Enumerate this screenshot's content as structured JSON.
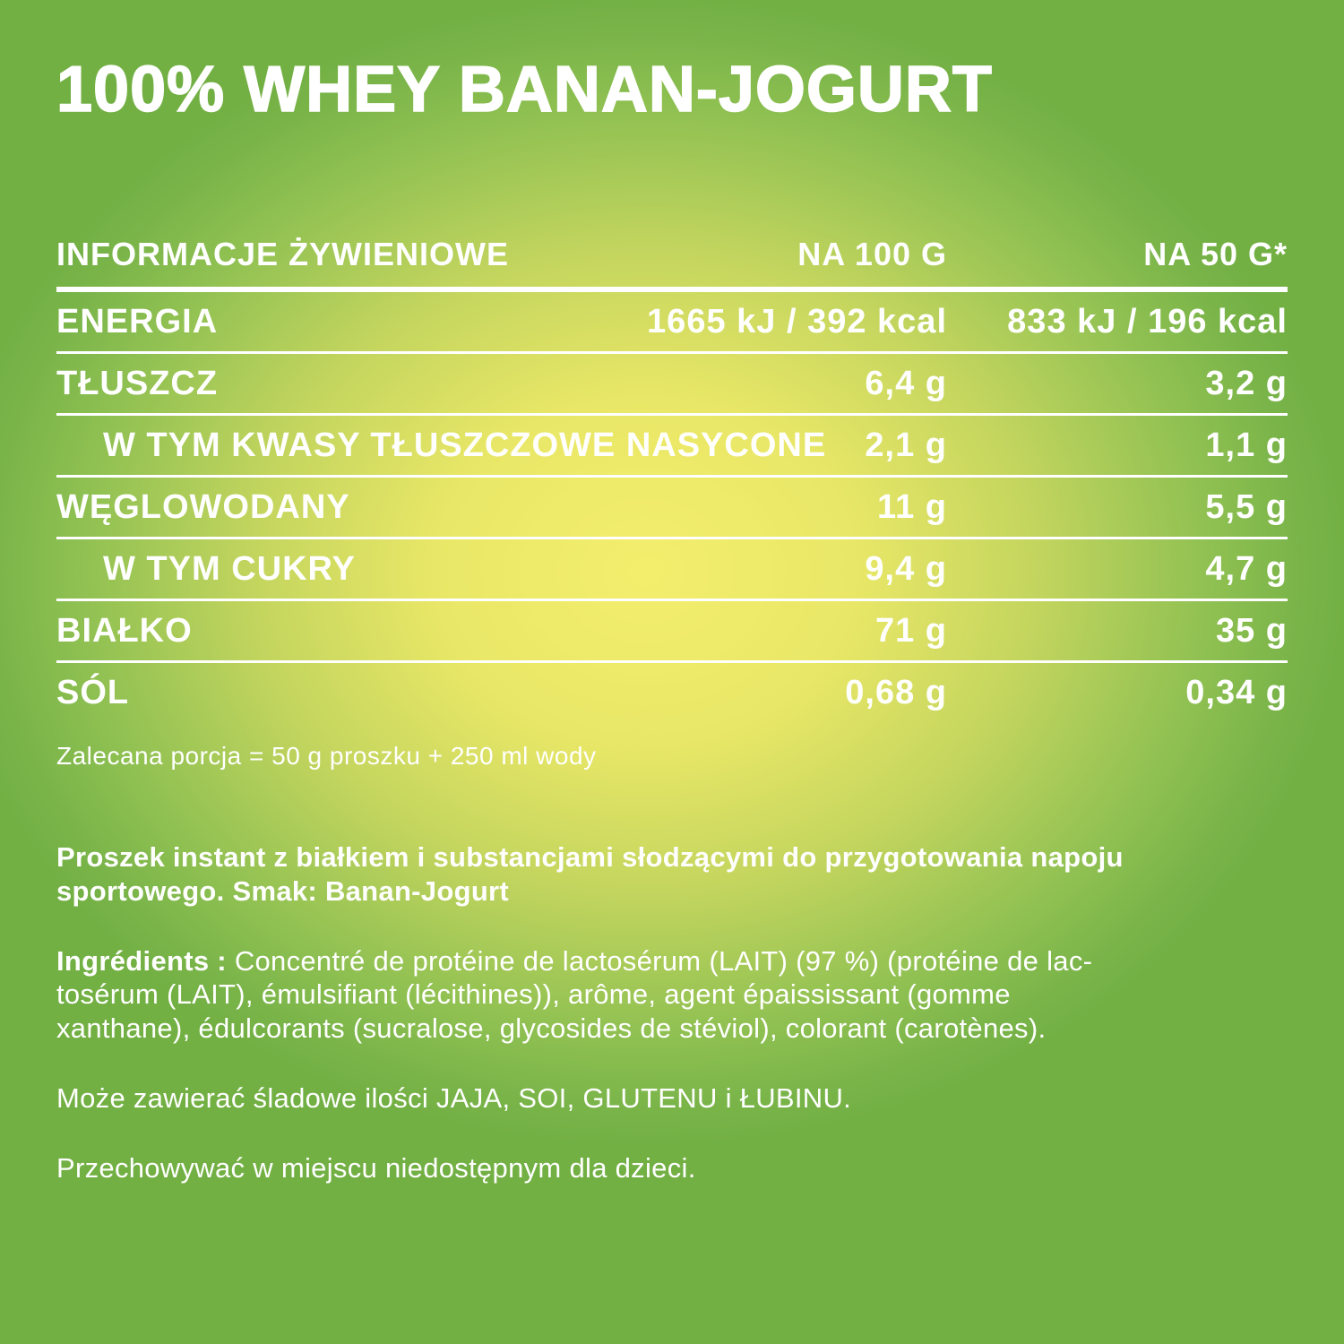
{
  "colors": {
    "background_center": "#f4ee6d",
    "background_mid": "#c3d55e",
    "background_edge": "#73b044",
    "text": "#ffffff"
  },
  "title": "100% WHEY BANAN-JOGURT",
  "table": {
    "header": {
      "col1": "INFORMACJE ŻYWIENIOWE",
      "col2": "NA 100 G",
      "col3": "NA 50 G*"
    },
    "rows": [
      {
        "label": "ENERGIA",
        "per100": "1665 kJ / 392 kcal",
        "per50": "833 kJ / 196 kcal",
        "sub": false
      },
      {
        "label": "TŁUSZCZ",
        "per100": "6,4 g",
        "per50": "3,2 g",
        "sub": false
      },
      {
        "label": "W TYM KWASY TŁUSZCZOWE NASYCONE",
        "per100": "2,1 g",
        "per50": "1,1 g",
        "sub": true
      },
      {
        "label": "WĘGLOWODANY",
        "per100": "11 g",
        "per50": "5,5 g",
        "sub": false
      },
      {
        "label": "W TYM CUKRY",
        "per100": "9,4 g",
        "per50": "4,7 g",
        "sub": true
      },
      {
        "label": "BIAŁKO",
        "per100": "71 g",
        "per50": "35 g",
        "sub": false
      },
      {
        "label": "SÓL",
        "per100": "0,68 g",
        "per50": "0,34 g",
        "sub": false
      }
    ],
    "footnote": "Zalecana porcja = 50 g proszku + 250 ml wody"
  },
  "paragraphs": {
    "description_lines": [
      "Proszek instant z białkiem i substancjami słodzącymi do przygotowania napoju",
      "sportowego. Smak: Banan-Jogurt"
    ],
    "ingredients_label": "Ingrédients : ",
    "ingredients_lines": [
      "Concentré de protéine de lactosérum (LAIT) (97 %) (protéine de lac-",
      "tosérum (LAIT), émulsifiant (lécithines)), arôme, agent épaississant (gomme",
      "xanthane), édulcorants (sucralose, glycosides de stéviol), colorant (carotènes)."
    ],
    "allergens": "Może zawierać śladowe ilości JAJA, SOI, GLUTENU i ŁUBINU.",
    "storage": "Przechowywać w miejscu niedostępnym dla dzieci."
  }
}
